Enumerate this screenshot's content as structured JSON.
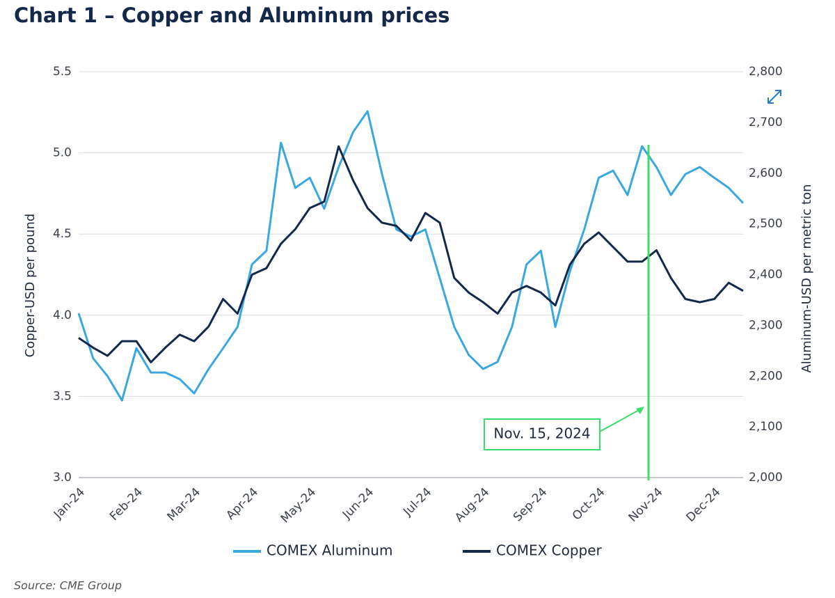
{
  "chart_data": {
    "type": "line",
    "title": "Chart 1 – Copper and Aluminum prices",
    "y_label": "Copper-USD per pound",
    "y2_label": "Aluminum-USD per metric ton",
    "source": "Source: CME Group",
    "annotation": "Nov. 15, 2024",
    "categories": [
      "Jan-24",
      null,
      null,
      null,
      "Feb-24",
      null,
      null,
      null,
      "Mar-24",
      null,
      null,
      null,
      "Apr-24",
      null,
      null,
      null,
      "May-24",
      null,
      null,
      null,
      "Jun-24",
      null,
      null,
      null,
      "Jul-24",
      null,
      null,
      null,
      "Aug-24",
      null,
      null,
      null,
      "Sep-24",
      null,
      null,
      null,
      "Oct-24",
      null,
      null,
      null,
      "Nov-24",
      null,
      null,
      null,
      "Dec-24",
      null,
      null
    ],
    "series": [
      {
        "name": "COMEX Aluminum",
        "color": "#3aa8e0",
        "axis": "y2",
        "values": [
          2324,
          2235,
          2200,
          2152,
          2255,
          2207,
          2207,
          2194,
          2166,
          2214,
          2255,
          2297,
          2420,
          2447,
          2660,
          2571,
          2591,
          2530,
          2612,
          2681,
          2722,
          2598,
          2489,
          2475,
          2489,
          2393,
          2297,
          2242,
          2214,
          2228,
          2297,
          2420,
          2447,
          2297,
          2406,
          2489,
          2591,
          2605,
          2557,
          2653,
          2612,
          2557,
          2598,
          2612,
          2591,
          2571,
          2541
        ]
      },
      {
        "name": "COMEX Copper",
        "color": "#13284a",
        "values": [
          3.86,
          3.8,
          3.75,
          3.84,
          3.84,
          3.71,
          3.8,
          3.88,
          3.84,
          3.93,
          4.1,
          4.01,
          4.25,
          4.29,
          4.44,
          4.53,
          4.66,
          4.7,
          5.04,
          4.83,
          4.66,
          4.57,
          4.55,
          4.46,
          4.63,
          4.57,
          4.23,
          4.14,
          4.08,
          4.01,
          4.14,
          4.18,
          4.14,
          4.06,
          4.31,
          4.44,
          4.51,
          4.42,
          4.33,
          4.33,
          4.4,
          4.23,
          4.1,
          4.08,
          4.1,
          4.2,
          4.15
        ]
      }
    ],
    "ylim": [
      3,
      5.5
    ],
    "yticks": [
      {
        "value": 3,
        "label": "3.0"
      },
      3.5,
      {
        "value": 4,
        "label": "4.0"
      },
      4.5,
      {
        "value": 5,
        "label": "5.0"
      },
      5.5
    ],
    "y2lim": [
      2000,
      2800
    ],
    "y2ticks": [
      {
        "value": 2000,
        "label": "2,000"
      },
      {
        "value": 2100,
        "label": "2,100"
      },
      {
        "value": 2200,
        "label": "2,200"
      },
      {
        "value": 2300,
        "label": "2,300"
      },
      {
        "value": 2400,
        "label": "2,400"
      },
      {
        "value": 2500,
        "label": "2,500"
      },
      {
        "value": 2600,
        "label": "2,600"
      },
      {
        "value": 2700,
        "label": "2,700"
      },
      {
        "value": 2800,
        "label": "2,800"
      }
    ],
    "grid": true,
    "legend": "bottom"
  }
}
